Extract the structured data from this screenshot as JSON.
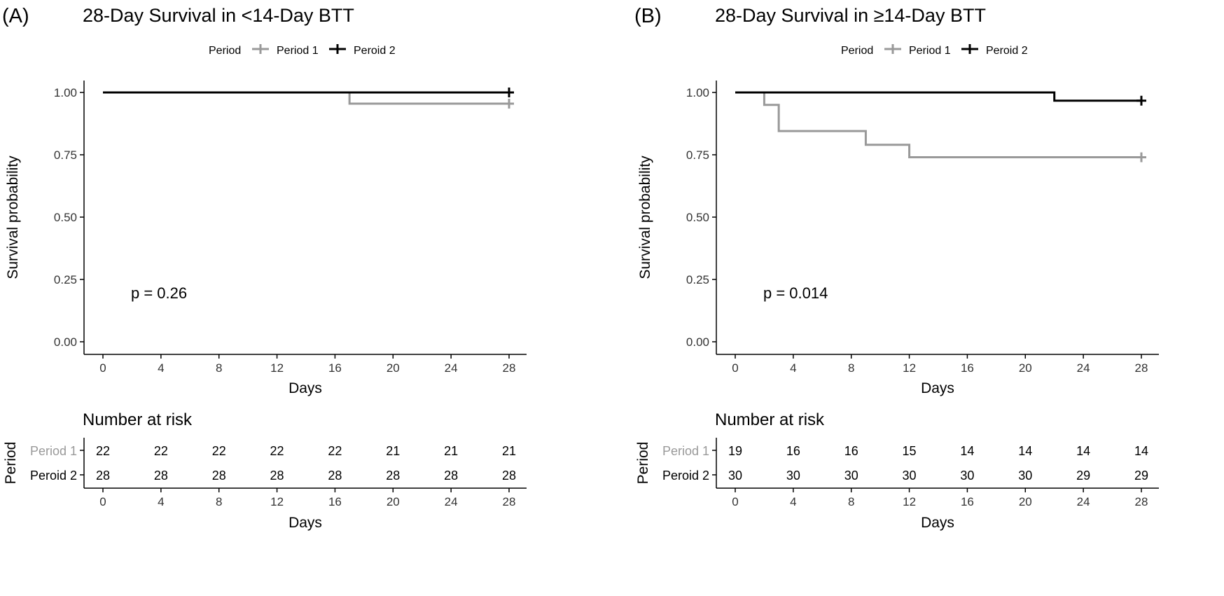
{
  "chart_data": [
    {
      "type": "line",
      "panel_label": "(A)",
      "title": "28-Day Survival in <14-Day BTT",
      "legend_title": "Period",
      "xlabel": "Days",
      "ylabel": "Survival probability",
      "xlim": [
        0,
        28
      ],
      "ylim": [
        0,
        1
      ],
      "x_ticks": [
        "0",
        "4",
        "8",
        "12",
        "16",
        "20",
        "24",
        "28"
      ],
      "y_ticks": [
        "0.00",
        "0.25",
        "0.50",
        "0.75",
        "1.00"
      ],
      "pvalue": "p = 0.26",
      "legend_position": "top",
      "series": [
        {
          "name": "Period 1",
          "color": "#999999",
          "steps": [
            [
              0,
              1.0
            ],
            [
              17,
              0.955
            ],
            [
              28,
              0.955
            ]
          ],
          "censor_x": [
            28
          ]
        },
        {
          "name": "Peroid 2",
          "color": "#000000",
          "steps": [
            [
              0,
              1.0
            ],
            [
              28,
              1.0
            ]
          ],
          "censor_x": [
            28
          ]
        }
      ],
      "risk_table": {
        "title": "Number at risk",
        "ylabel": "Period",
        "xlabel": "Days",
        "times": [
          "0",
          "4",
          "8",
          "12",
          "16",
          "20",
          "24",
          "28"
        ],
        "rows": [
          {
            "label": "Period 1",
            "color": "#999999",
            "values": [
              "22",
              "22",
              "22",
              "22",
              "22",
              "21",
              "21",
              "21"
            ]
          },
          {
            "label": "Peroid 2",
            "color": "#000000",
            "values": [
              "28",
              "28",
              "28",
              "28",
              "28",
              "28",
              "28",
              "28"
            ]
          }
        ]
      }
    },
    {
      "type": "line",
      "panel_label": "(B)",
      "title": "28-Day Survival in ≥14-Day BTT",
      "legend_title": "Period",
      "xlabel": "Days",
      "ylabel": "Survival probability",
      "xlim": [
        0,
        28
      ],
      "ylim": [
        0,
        1
      ],
      "x_ticks": [
        "0",
        "4",
        "8",
        "12",
        "16",
        "20",
        "24",
        "28"
      ],
      "y_ticks": [
        "0.00",
        "0.25",
        "0.50",
        "0.75",
        "1.00"
      ],
      "pvalue": "p = 0.014",
      "legend_position": "top",
      "series": [
        {
          "name": "Period 1",
          "color": "#999999",
          "steps": [
            [
              0,
              1.0
            ],
            [
              2,
              0.95
            ],
            [
              3,
              0.845
            ],
            [
              9,
              0.79
            ],
            [
              12,
              0.74
            ],
            [
              28,
              0.74
            ]
          ],
          "censor_x": [
            28
          ]
        },
        {
          "name": "Peroid 2",
          "color": "#000000",
          "steps": [
            [
              0,
              1.0
            ],
            [
              22,
              0.967
            ],
            [
              28,
              0.967
            ]
          ],
          "censor_x": [
            28
          ]
        }
      ],
      "risk_table": {
        "title": "Number at risk",
        "ylabel": "Period",
        "xlabel": "Days",
        "times": [
          "0",
          "4",
          "8",
          "12",
          "16",
          "20",
          "24",
          "28"
        ],
        "rows": [
          {
            "label": "Period 1",
            "color": "#999999",
            "values": [
              "19",
              "16",
              "16",
              "15",
              "14",
              "14",
              "14",
              "14"
            ]
          },
          {
            "label": "Peroid 2",
            "color": "#000000",
            "values": [
              "30",
              "30",
              "30",
              "30",
              "30",
              "30",
              "29",
              "29"
            ]
          }
        ]
      }
    }
  ]
}
